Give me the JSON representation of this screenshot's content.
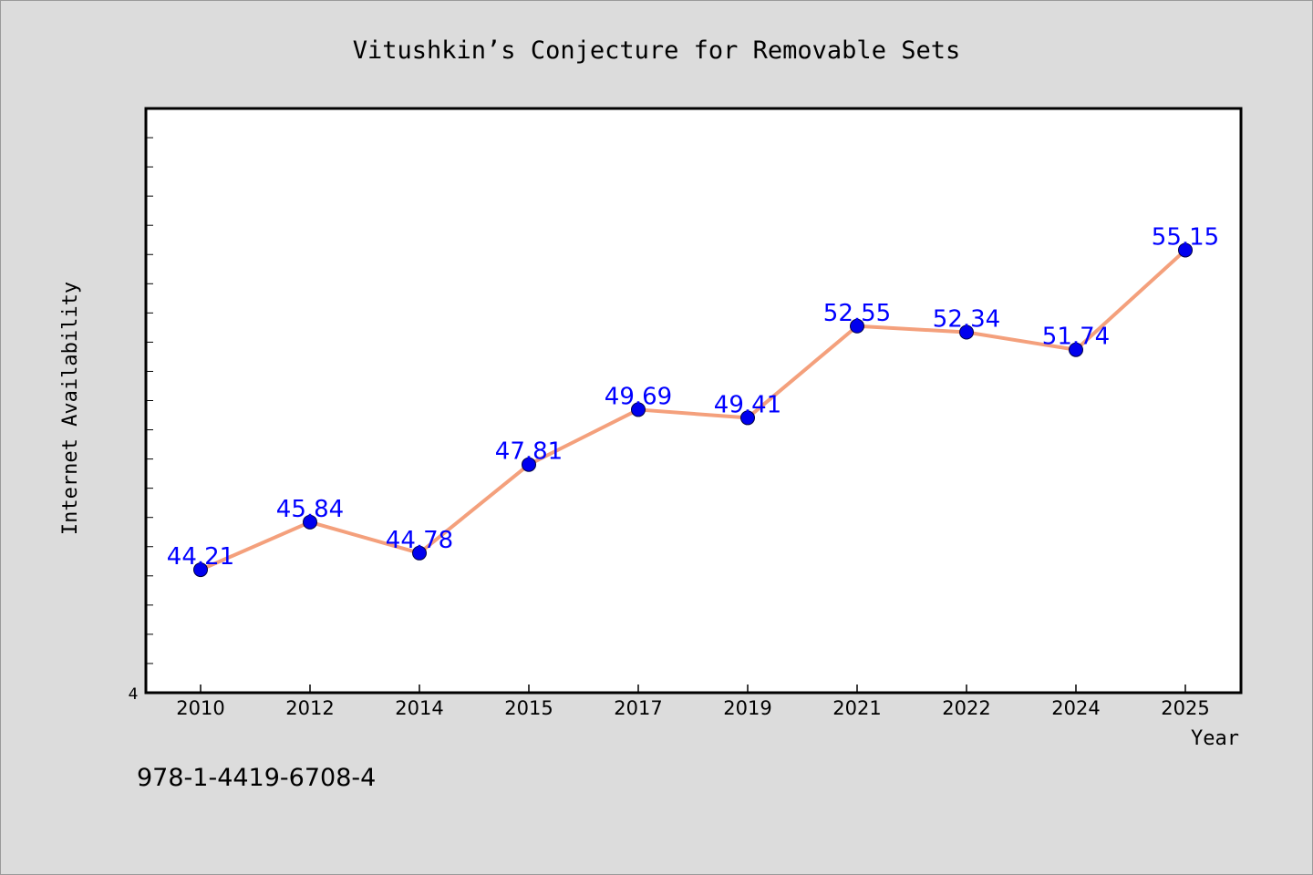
{
  "chart_data": {
    "type": "line",
    "title": "Vitushkin’s Conjecture for Removable Sets",
    "xlabel": "Year",
    "ylabel": "Internet Availability",
    "categories": [
      "2010",
      "2012",
      "2014",
      "2015",
      "2017",
      "2019",
      "2021",
      "2022",
      "2024",
      "2025"
    ],
    "series": [
      {
        "values": [
          44.21,
          45.84,
          44.78,
          47.81,
          49.69,
          49.41,
          52.55,
          52.34,
          51.74,
          55.15
        ]
      }
    ],
    "value_labels": [
      "44.21",
      "45.84",
      "44.78",
      "47.81",
      "49.69",
      "49.41",
      "52.55",
      "52.34",
      "51.74",
      "55.15"
    ],
    "y_tick_label": "4",
    "ylim": [
      40,
      60
    ],
    "grid": false,
    "colors": {
      "line": "#f4a07c",
      "marker": "#0000ee",
      "value_label": "#0000ff",
      "background": "#dcdcdc",
      "plot_background": "#ffffff"
    }
  },
  "footer": {
    "isbn": "978-1-4419-6708-4"
  }
}
